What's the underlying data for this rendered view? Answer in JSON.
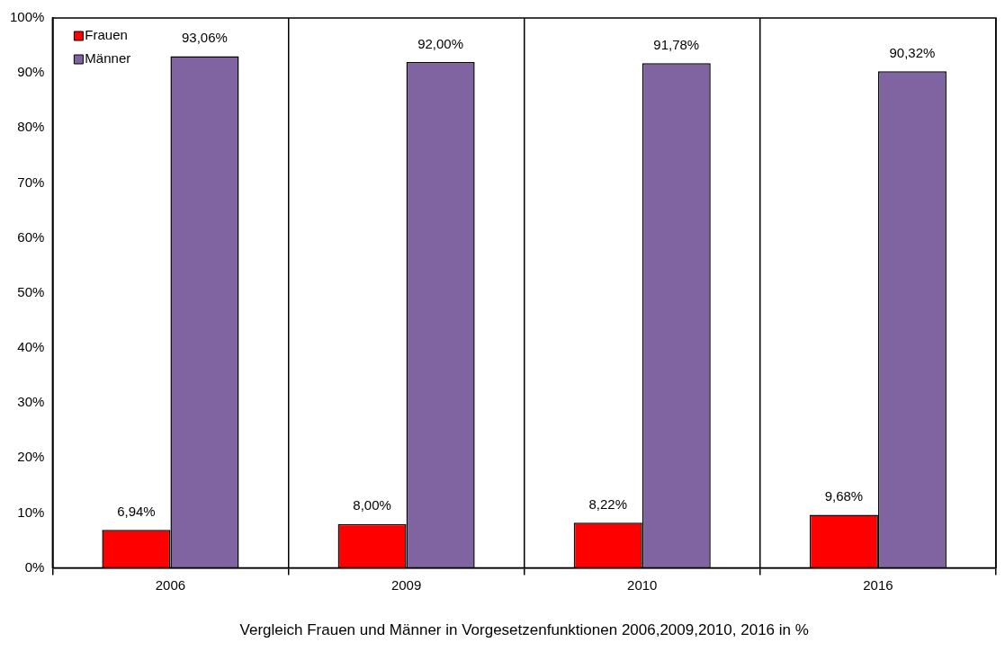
{
  "chart_data": {
    "type": "bar",
    "xlabel": "Vergleich Frauen und Männer in Vorgesetzenfunktionen 2006,2009,2010, 2016 in %",
    "categories": [
      "2006",
      "2009",
      "2010",
      "2016"
    ],
    "series": [
      {
        "name": "Frauen",
        "color": "#ff0000",
        "values": [
          6.94,
          8.0,
          8.22,
          9.68
        ],
        "value_labels": [
          "6,94%",
          "8,00%",
          "8,22%",
          "9,68%"
        ]
      },
      {
        "name": "Männer",
        "color": "#8064a2",
        "values": [
          93.06,
          92.0,
          91.78,
          90.32
        ],
        "value_labels": [
          "93,06%",
          "92,00%",
          "91,78%",
          "90,32%"
        ]
      }
    ],
    "ylim": [
      0,
      100
    ],
    "yticks": [
      {
        "value": 0,
        "label": "0%"
      },
      {
        "value": 10,
        "label": "10%"
      },
      {
        "value": 20,
        "label": "20%"
      },
      {
        "value": 30,
        "label": "30%"
      },
      {
        "value": 40,
        "label": "40%"
      },
      {
        "value": 50,
        "label": "50%"
      },
      {
        "value": 60,
        "label": "60%"
      },
      {
        "value": 70,
        "label": "70%"
      },
      {
        "value": 80,
        "label": "80%"
      },
      {
        "value": 90,
        "label": "90%"
      },
      {
        "value": 100,
        "label": "100%"
      }
    ],
    "grid": "x",
    "legend": "top left"
  }
}
